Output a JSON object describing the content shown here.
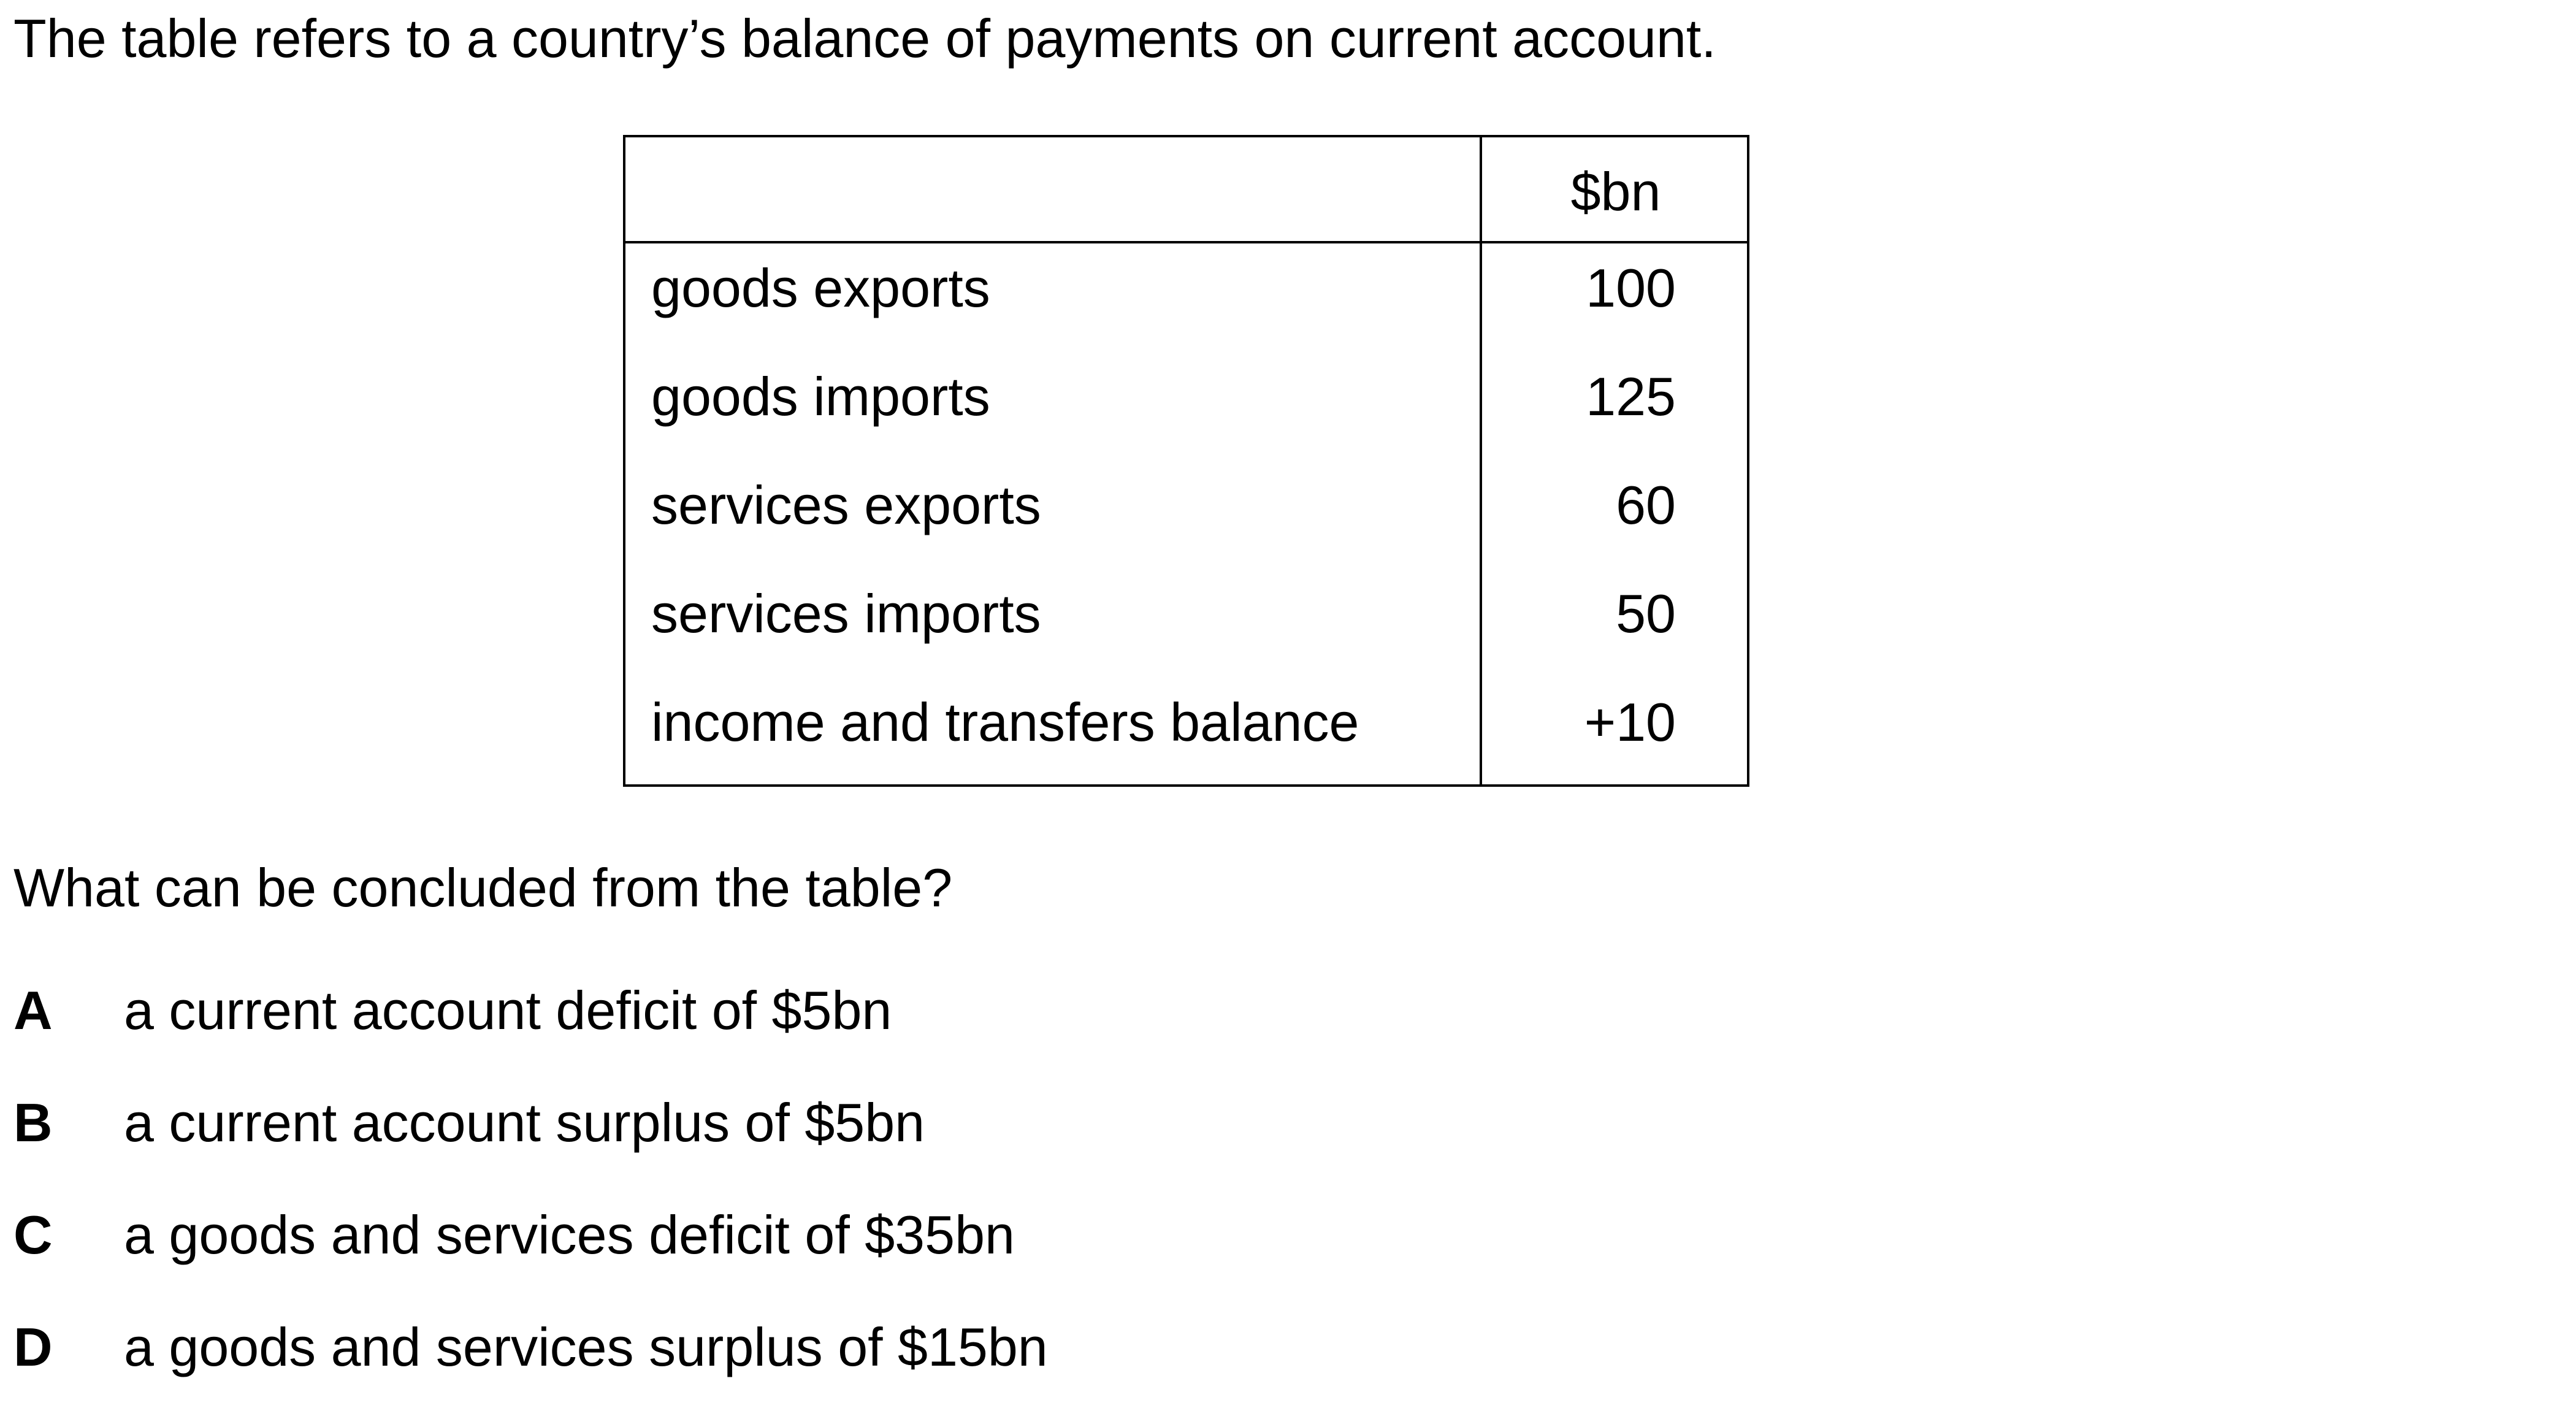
{
  "intro": "The table refers to a country’s balance of payments on current account.",
  "table": {
    "unit_header": "$bn",
    "rows": [
      {
        "label": "goods exports",
        "value": "100"
      },
      {
        "label": "goods imports",
        "value": "125"
      },
      {
        "label": "services exports",
        "value": "60"
      },
      {
        "label": "services imports",
        "value": "50"
      },
      {
        "label": "income and transfers balance",
        "value": "+10"
      }
    ]
  },
  "question": "What can be concluded from the table?",
  "options": [
    {
      "letter": "A",
      "text": "a current account deficit of $5bn"
    },
    {
      "letter": "B",
      "text": "a current account surplus of $5bn"
    },
    {
      "letter": "C",
      "text": "a goods and services deficit of $35bn"
    },
    {
      "letter": "D",
      "text": "a goods and services surplus of $15bn"
    }
  ]
}
